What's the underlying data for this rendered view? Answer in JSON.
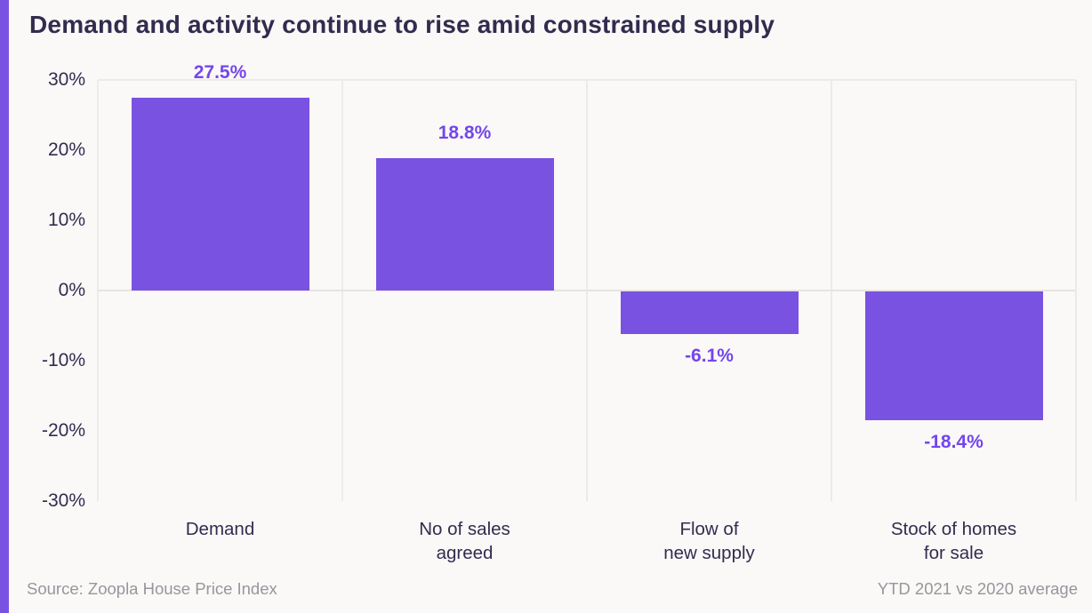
{
  "title": "Demand and activity continue to rise amid constrained supply",
  "footer": {
    "source": "Source: Zoopla House Price Index",
    "note": "YTD 2021 vs 2020 average"
  },
  "colors": {
    "accent_stripe": "#7A52E1",
    "bar": "#7A52E1",
    "value_label": "#7446EC",
    "ink": "#322C4F",
    "muted": "#98959D",
    "background": "#FAF9F7",
    "gridline": "#EDEBE8"
  },
  "chart_data": {
    "type": "bar",
    "title": "Demand and activity continue to rise amid constrained supply",
    "categories": [
      "Demand",
      "No of sales agreed",
      "Flow of new supply",
      "Stock of homes for sale"
    ],
    "category_label_lines": [
      [
        "Demand"
      ],
      [
        "No of sales",
        "agreed"
      ],
      [
        "Flow of",
        "new supply"
      ],
      [
        "Stock of homes",
        "for sale"
      ]
    ],
    "values": [
      27.5,
      18.8,
      -6.1,
      -18.4
    ],
    "value_labels": [
      "27.5%",
      "18.8%",
      "-6.1%",
      "-18.4%"
    ],
    "y_ticks": [
      "30%",
      "20%",
      "10%",
      "0%",
      "-10%",
      "-20%",
      "-30%"
    ],
    "y_tick_values": [
      30,
      20,
      10,
      0,
      -10,
      -20,
      -30
    ],
    "ylim": [
      -30,
      30
    ],
    "xlabel": "",
    "ylabel": "",
    "legend": "none",
    "grid": "vertical category separators; horizontal lines at 30% and 0% only",
    "source": "Source: Zoopla House Price Index",
    "note": "YTD 2021 vs 2020 average"
  }
}
